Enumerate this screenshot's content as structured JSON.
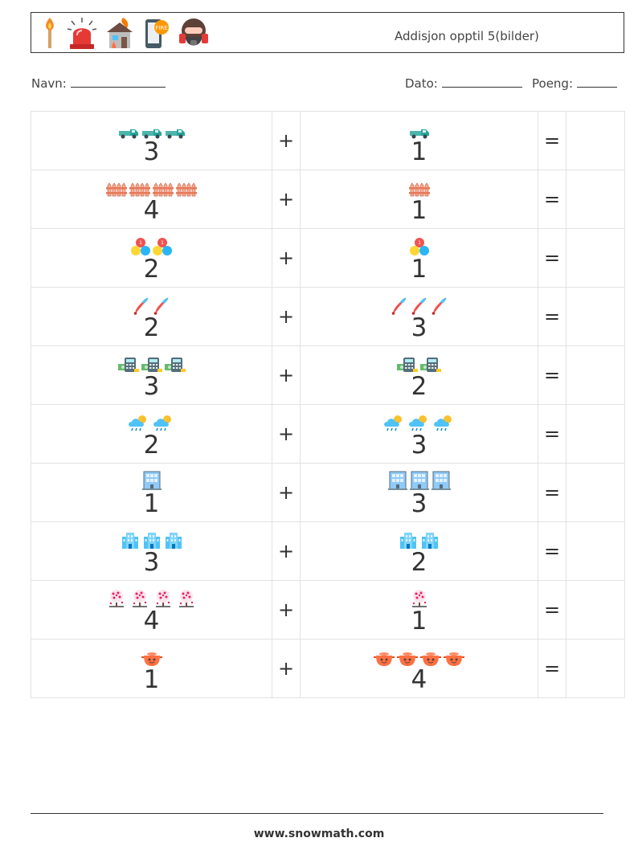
{
  "header": {
    "title": "Addisjon opptil 5(bilder)",
    "icons": [
      "match-icon",
      "siren-icon",
      "burning-house-icon",
      "fire-phone-icon",
      "gas-mask-icon"
    ]
  },
  "fields": {
    "name_label": "Navn:",
    "date_label": "Dato:",
    "score_label": "Poeng:"
  },
  "operators": {
    "plus": "+",
    "equals": "="
  },
  "rows": [
    {
      "a": 3,
      "a_text": "3",
      "b": 1,
      "b_text": "1",
      "icon": "pickup-truck-icon"
    },
    {
      "a": 4,
      "a_text": "4",
      "b": 1,
      "b_text": "1",
      "icon": "fence-icon"
    },
    {
      "a": 2,
      "a_text": "2",
      "b": 1,
      "b_text": "1",
      "icon": "balls-icon"
    },
    {
      "a": 2,
      "a_text": "2",
      "b": 3,
      "b_text": "3",
      "icon": "juggling-pins-icon"
    },
    {
      "a": 3,
      "a_text": "3",
      "b": 2,
      "b_text": "2",
      "icon": "calculator-money-icon"
    },
    {
      "a": 2,
      "a_text": "2",
      "b": 3,
      "b_text": "3",
      "icon": "rain-cloud-sun-icon"
    },
    {
      "a": 1,
      "a_text": "1",
      "b": 3,
      "b_text": "3",
      "icon": "office-building-icon"
    },
    {
      "a": 3,
      "a_text": "3",
      "b": 2,
      "b_text": "2",
      "icon": "city-buildings-icon"
    },
    {
      "a": 4,
      "a_text": "4",
      "b": 1,
      "b_text": "1",
      "icon": "blossom-tree-icon"
    },
    {
      "a": 1,
      "a_text": "1",
      "b": 4,
      "b_text": "4",
      "icon": "cooking-pot-icon"
    }
  ],
  "footer": {
    "url": "www.snowmath.com"
  }
}
